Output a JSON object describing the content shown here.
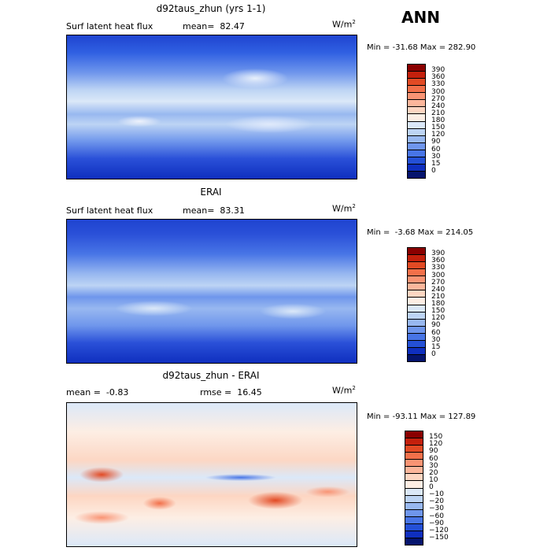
{
  "season": "ANN",
  "panels": [
    {
      "title": "d92taus_zhun (yrs 1-1)",
      "left_label": "Surf latent heat flux",
      "center_label": "mean=  82.47",
      "units": "W/m",
      "units_sup": "2",
      "minmax": "Min = -31.68 Max = 282.90",
      "levels": [
        "390",
        "360",
        "330",
        "300",
        "270",
        "240",
        "210",
        "180",
        "150",
        "120",
        "90",
        "60",
        "30",
        "15",
        "0"
      ],
      "colors": [
        "#8a0000",
        "#c4200c",
        "#e24a24",
        "#f2704a",
        "#f99474",
        "#fcb69b",
        "#fdd6c2",
        "#fdeee4",
        "#dbe8f8",
        "#bdd4f4",
        "#98b8f0",
        "#6f96ec",
        "#4875e6",
        "#2450d6",
        "#0f2fbf",
        "#05146e"
      ]
    },
    {
      "title": "ERAI",
      "left_label": "Surf latent heat flux",
      "center_label": "mean=  83.31",
      "units": "W/m",
      "units_sup": "2",
      "minmax": "Min =  -3.68 Max = 214.05",
      "levels": [
        "390",
        "360",
        "330",
        "300",
        "270",
        "240",
        "210",
        "180",
        "150",
        "120",
        "90",
        "60",
        "30",
        "15",
        "0"
      ],
      "colors": [
        "#8a0000",
        "#c4200c",
        "#e24a24",
        "#f2704a",
        "#f99474",
        "#fcb69b",
        "#fdd6c2",
        "#fdeee4",
        "#dbe8f8",
        "#bdd4f4",
        "#98b8f0",
        "#6f96ec",
        "#4875e6",
        "#2450d6",
        "#0f2fbf",
        "#05146e"
      ]
    },
    {
      "title": "d92taus_zhun - ERAI",
      "left_label": "mean =  -0.83",
      "center_label": "rmse =  16.45",
      "units": "W/m",
      "units_sup": "2",
      "minmax": "Min = -93.11 Max = 127.89",
      "levels": [
        "150",
        "120",
        "90",
        "60",
        "30",
        "20",
        "10",
        "0",
        "−10",
        "−20",
        "−30",
        "−60",
        "−90",
        "−120",
        "−150"
      ],
      "colors": [
        "#8a0000",
        "#c4200c",
        "#e24a24",
        "#f2704a",
        "#f99474",
        "#fcb69b",
        "#fdd6c2",
        "#fdeee4",
        "#dbe8f8",
        "#bdd4f4",
        "#98b8f0",
        "#6f96ec",
        "#4875e6",
        "#2450d6",
        "#0f2fbf",
        "#05146e"
      ]
    }
  ]
}
